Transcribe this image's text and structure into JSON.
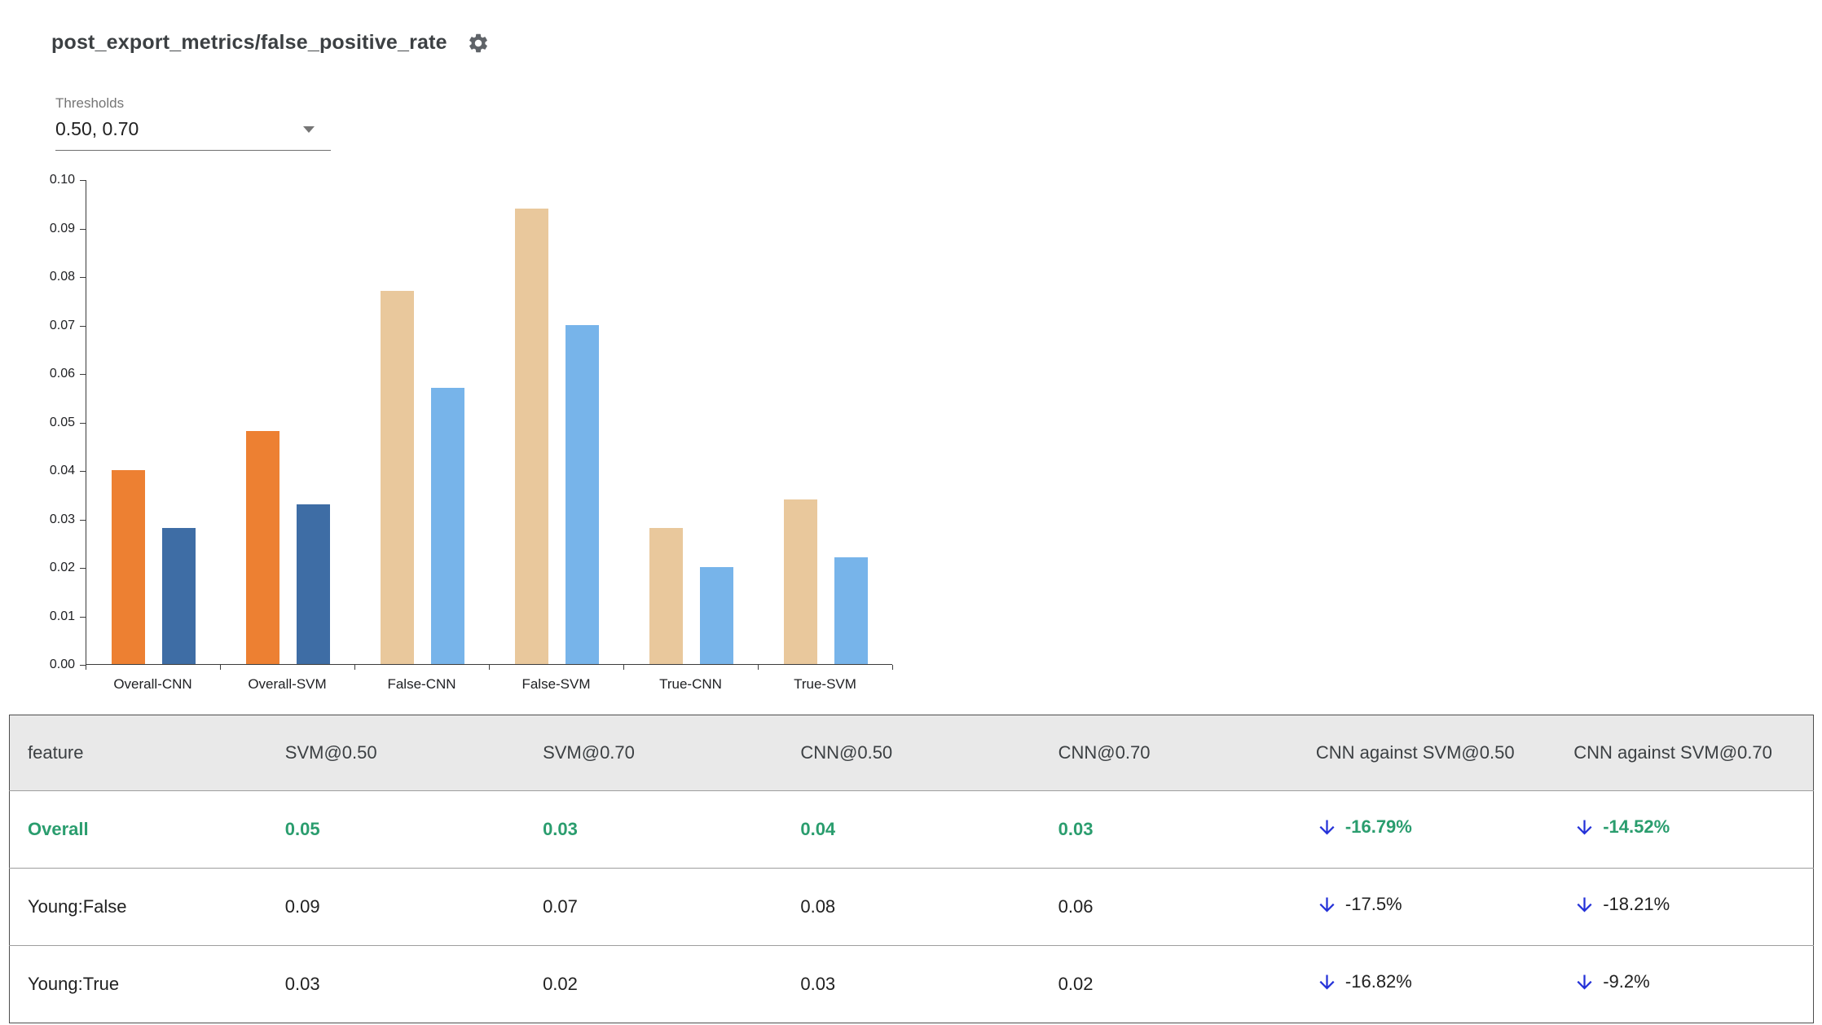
{
  "header": {
    "title": "post_export_metrics/false_positive_rate"
  },
  "controls": {
    "thresholds_label": "Thresholds",
    "thresholds_value": "0.50, 0.70"
  },
  "icons": {
    "settings_icon": "gear",
    "dropdown_icon": "triangle-down",
    "delta_direction_icon": "arrow-down"
  },
  "chart_data": {
    "type": "bar",
    "title": "",
    "xlabel": "",
    "ylabel": "",
    "categories": [
      "Overall-CNN",
      "Overall-SVM",
      "False-CNN",
      "False-SVM",
      "True-CNN",
      "True-SVM"
    ],
    "series": [
      {
        "name": "0.50",
        "values": [
          0.04,
          0.048,
          0.077,
          0.094,
          0.028,
          0.034
        ]
      },
      {
        "name": "0.70",
        "values": [
          0.028,
          0.033,
          0.057,
          0.07,
          0.02,
          0.022
        ]
      }
    ],
    "ylim": [
      0,
      0.1
    ],
    "ytick_step": 0.01,
    "grid": false,
    "legend": "none",
    "highlight_categories": [
      "Overall-CNN",
      "Overall-SVM"
    ],
    "colors": {
      "highlight": [
        "#ED8032",
        "#3E6DA5"
      ],
      "normal": [
        "#E9C89C",
        "#77B4EA"
      ]
    }
  },
  "table": {
    "columns": [
      "feature",
      "SVM@0.50",
      "SVM@0.70",
      "CNN@0.50",
      "CNN@0.70",
      "CNN against SVM@0.50",
      "CNN against SVM@0.70"
    ],
    "rows": [
      {
        "feature": "Overall",
        "values": [
          "0.05",
          "0.03",
          "0.04",
          "0.03"
        ],
        "deltas": [
          "-16.79%",
          "-14.52%"
        ],
        "highlighted": true
      },
      {
        "feature": "Young:False",
        "values": [
          "0.09",
          "0.07",
          "0.08",
          "0.06"
        ],
        "deltas": [
          "-17.5%",
          "-18.21%"
        ],
        "highlighted": false
      },
      {
        "feature": "Young:True",
        "values": [
          "0.03",
          "0.02",
          "0.03",
          "0.02"
        ],
        "deltas": [
          "-16.82%",
          "-9.2%"
        ],
        "highlighted": false
      }
    ]
  }
}
